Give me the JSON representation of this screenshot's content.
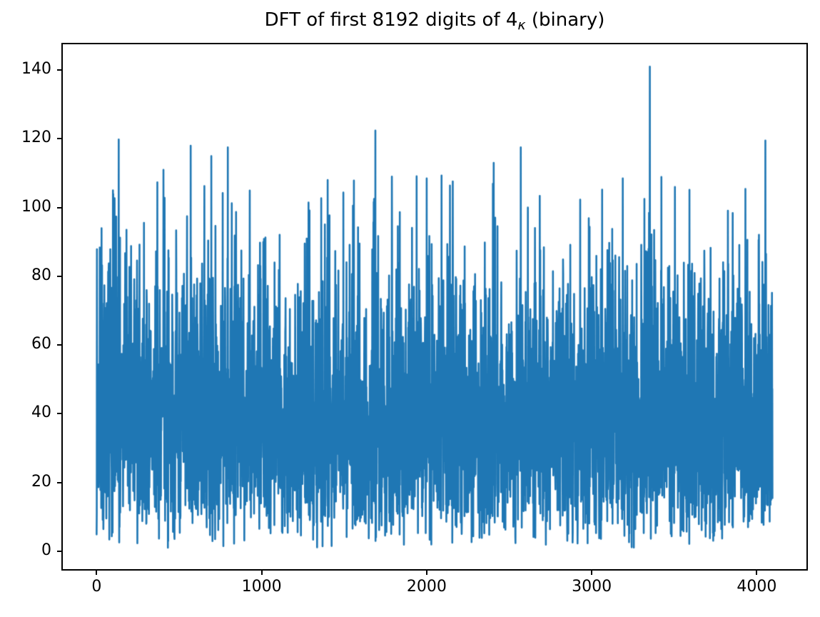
{
  "figure": {
    "background_color": "#ffffff",
    "title": {
      "full": "DFT of first 8192 digits of 4κ (binary)",
      "prefix": "DFT of first 8192 digits of 4",
      "subscript": "κ",
      "suffix": " (binary)"
    }
  },
  "chart_data": {
    "type": "line",
    "title": "DFT of first 8192 digits of 4κ (binary)",
    "xlabel": "",
    "ylabel": "",
    "legend": null,
    "grid": false,
    "line_color": "#1f77b4",
    "spine_color": "#000000",
    "background_color": "#ffffff",
    "x_ticks": [
      0,
      1000,
      2000,
      3000,
      4000
    ],
    "y_ticks": [
      0,
      20,
      40,
      60,
      80,
      100,
      120,
      140
    ],
    "xlim": [
      -204.8,
      4300.8
    ],
    "ylim": [
      -5.2,
      147.5
    ],
    "n_points": 4096,
    "x_data_range": [
      0,
      4095
    ],
    "y_max_observed": 141,
    "y_min_observed": 1,
    "series_description": "One-sided DFT magnitude spectrum of an 8192-digit binary sequence: 4096 noise-like Rayleigh-distributed magnitudes (dense band ~15-65, mean ~40) with isolated spikes above 100.",
    "synthesis": {
      "distribution": "rayleigh",
      "sigma": 32,
      "seed": 7,
      "clamp_min": 0.8,
      "clamp_max": 110
    },
    "notable_peaks": [
      {
        "x": 30,
        "y": 94.0
      },
      {
        "x": 99,
        "y": 105.0
      },
      {
        "x": 134,
        "y": 119.8
      },
      {
        "x": 405,
        "y": 111.0
      },
      {
        "x": 570,
        "y": 118.0
      },
      {
        "x": 695,
        "y": 115.0
      },
      {
        "x": 795,
        "y": 117.5
      },
      {
        "x": 1400,
        "y": 108.0
      },
      {
        "x": 1689,
        "y": 122.4
      },
      {
        "x": 2000,
        "y": 108.5
      },
      {
        "x": 2090,
        "y": 109.3
      },
      {
        "x": 2406,
        "y": 113.0
      },
      {
        "x": 2570,
        "y": 117.5
      },
      {
        "x": 2613,
        "y": 100.0
      },
      {
        "x": 3188,
        "y": 108.5
      },
      {
        "x": 3352,
        "y": 141.0
      },
      {
        "x": 3931,
        "y": 105.4
      },
      {
        "x": 4052,
        "y": 119.5
      }
    ]
  }
}
